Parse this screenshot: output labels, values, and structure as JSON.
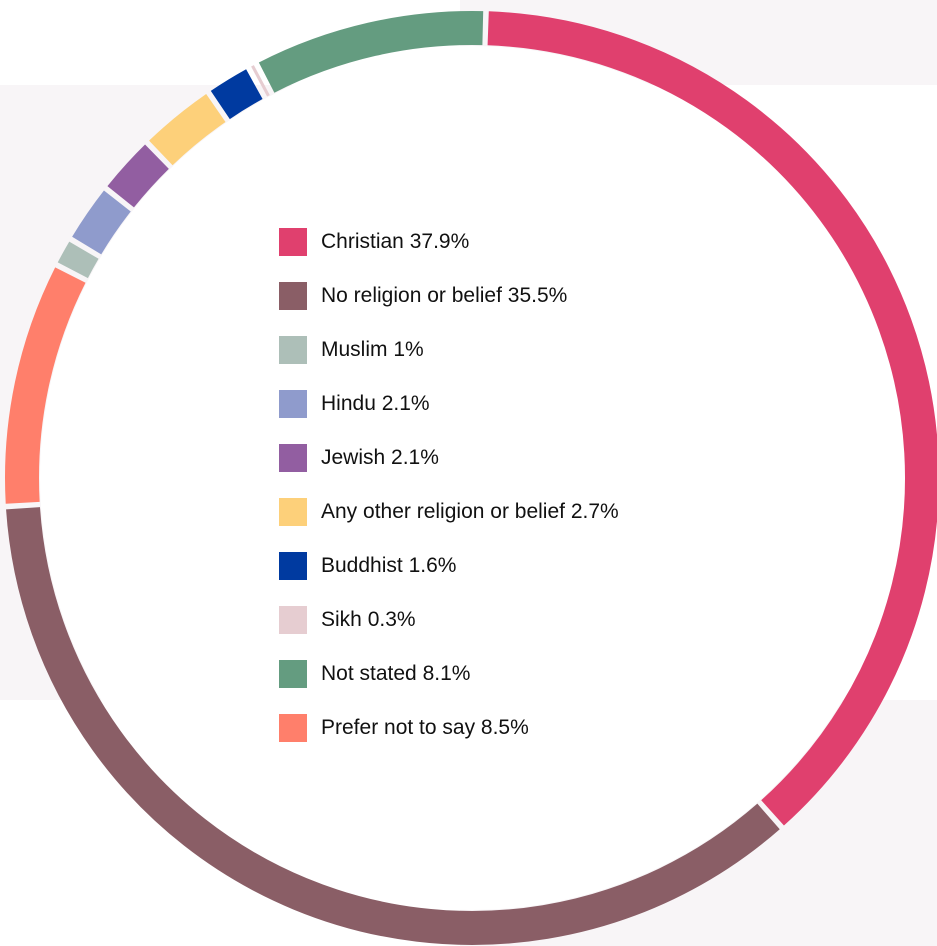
{
  "chart_data": {
    "type": "donut",
    "categories": [
      "Christian",
      "No religion or belief",
      "Muslim",
      "Hindu",
      "Jewish",
      "Any other religion or belief",
      "Buddhist",
      "Sikh",
      "Not stated",
      "Prefer not to say"
    ],
    "values": [
      37.9,
      35.5,
      1,
      2.1,
      2.1,
      2.7,
      1.6,
      0.3,
      8.1,
      8.5
    ],
    "value_labels": [
      "37.9%",
      "35.5%",
      "1%",
      "2.1%",
      "2.1%",
      "2.7%",
      "1.6%",
      "0.3%",
      "8.1%",
      "8.5%"
    ],
    "colors": [
      "#e0406e",
      "#8a5e66",
      "#adbfb8",
      "#8f9bcc",
      "#925ea1",
      "#fdd07a",
      "#003aa0",
      "#e6cdd1",
      "#649c80",
      "#ff7f6b"
    ],
    "legend": "center"
  }
}
